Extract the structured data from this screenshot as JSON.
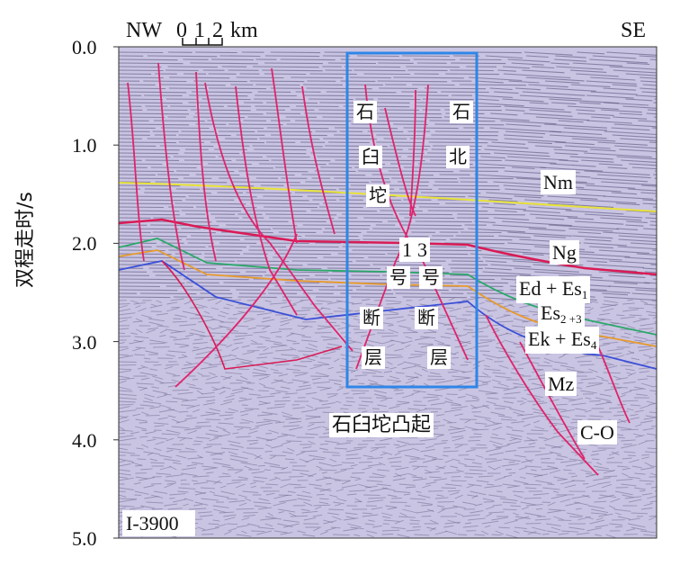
{
  "header": {
    "left_dir": "NW",
    "right_dir": "SE",
    "scale_text": "0 1 2 km"
  },
  "y_axis": {
    "label": "双程走时/s",
    "ticks": [
      "0.0",
      "1.0",
      "2.0",
      "3.0",
      "4.0",
      "5.0"
    ]
  },
  "profile_id": "I-3900",
  "faults": {
    "left": [
      "石",
      "臼",
      "坨",
      "1",
      "号",
      "断",
      "层"
    ],
    "right": [
      "石",
      "北",
      "3",
      "号",
      "断",
      "层"
    ]
  },
  "uplift_label": "石臼坨凸起",
  "units": {
    "nm": "Nm",
    "ng": "Ng",
    "ed": {
      "main": "Ed + Es",
      "sub": "1"
    },
    "es": {
      "main": "Es",
      "sub": "2 +3"
    },
    "ek": {
      "main": "Ek + Es",
      "sub": "4"
    },
    "mz": "Mz",
    "co": "C-O"
  },
  "colors": {
    "background": "#c9c4e2",
    "fault": "#e0236b",
    "nm_horizon": "#e8e23a",
    "ng_horizon": "#d81b55",
    "highlight_box": "#2e86e6",
    "green_horizon": "#2aa86a",
    "orange_horizon": "#e89a2a",
    "blue_horizon": "#3a4fd8"
  }
}
